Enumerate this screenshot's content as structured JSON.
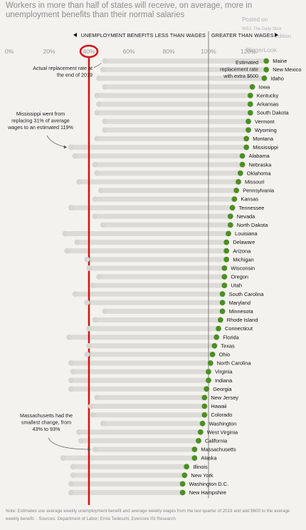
{
  "headline": "Workers in more than half of states will receive, on average, more in unemployment benefits than their normal salaries",
  "overlay": {
    "posted_on": "Posted on",
    "source_line": "WSJ. The Daily Shot",
    "edition": "Edition",
    "brand": "BiggerLook"
  },
  "note": "Note: Estimates use average weekly unemployment benefit and average weekly wages from the last quarter of 2019 and add $600 to the average weekly benefit. · Sources: Department of Labor; Ernie Tedeschi, Evercore ISI Research",
  "chart_data": {
    "type": "dumbbell",
    "x_ticks": [
      "0%",
      "20%",
      "40%",
      "60%",
      "80%",
      "100%",
      "120%"
    ],
    "x_tick_values": [
      0,
      20,
      40,
      60,
      80,
      100,
      120
    ],
    "xlim": [
      0,
      140
    ],
    "reference_line": 100,
    "highlight_tick": 40,
    "highlight_line": 40,
    "header_left": "UNEMPLOYMENT BENEFITS LESS THAN WAGES",
    "header_right": "GREATER THAN WAGES",
    "legend": {
      "start": "Actual replacement rate at the end of 2019",
      "end": "Estimated replacement rate with extra $600"
    },
    "annotations": [
      {
        "state": "Mississippi",
        "text": "Mississippi went from replacing 31% of average wages to an estimated 119%"
      },
      {
        "state": "Massachusetts",
        "text": "Massachusetts had the smallest change, from 43% to 93%"
      }
    ],
    "series": [
      {
        "name": "Actual replacement rate at the end of 2019",
        "field": "start"
      },
      {
        "name": "Estimated replacement rate with extra $600",
        "field": "end"
      }
    ],
    "states": [
      {
        "name": "Maine",
        "start": 48,
        "end": 129
      },
      {
        "name": "New Mexico",
        "start": 47,
        "end": 129
      },
      {
        "name": "Idaho",
        "start": 45,
        "end": 128
      },
      {
        "name": "Iowa",
        "start": 48,
        "end": 122
      },
      {
        "name": "Kentucky",
        "start": 44,
        "end": 121
      },
      {
        "name": "Arkansas",
        "start": 45,
        "end": 121
      },
      {
        "name": "South Dakota",
        "start": 44,
        "end": 121
      },
      {
        "name": "Vermont",
        "start": 48,
        "end": 120
      },
      {
        "name": "Wyoming",
        "start": 48,
        "end": 120
      },
      {
        "name": "Montana",
        "start": 44,
        "end": 119
      },
      {
        "name": "Mississippi",
        "start": 31,
        "end": 119
      },
      {
        "name": "Alabama",
        "start": 33,
        "end": 117
      },
      {
        "name": "Nebraska",
        "start": 43,
        "end": 117
      },
      {
        "name": "Oklahoma",
        "start": 44,
        "end": 116
      },
      {
        "name": "Missouri",
        "start": 35,
        "end": 115
      },
      {
        "name": "Pennsylvania",
        "start": 46,
        "end": 114
      },
      {
        "name": "Kansas",
        "start": 43,
        "end": 113
      },
      {
        "name": "Tennessee",
        "start": 31,
        "end": 112
      },
      {
        "name": "Nevada",
        "start": 43,
        "end": 111
      },
      {
        "name": "North Dakota",
        "start": 47,
        "end": 111
      },
      {
        "name": "Louisiana",
        "start": 28,
        "end": 110
      },
      {
        "name": "Delaware",
        "start": 34,
        "end": 109
      },
      {
        "name": "Arizona",
        "start": 29,
        "end": 109
      },
      {
        "name": "Michigan",
        "start": 39,
        "end": 109
      },
      {
        "name": "Wisconsin",
        "start": 40,
        "end": 108
      },
      {
        "name": "Oregon",
        "start": 45,
        "end": 108
      },
      {
        "name": "Utah",
        "start": 42,
        "end": 108
      },
      {
        "name": "South Carolina",
        "start": 33,
        "end": 107
      },
      {
        "name": "Maryland",
        "start": 39,
        "end": 107
      },
      {
        "name": "Minnesota",
        "start": 48,
        "end": 107
      },
      {
        "name": "Rhode Island",
        "start": 43,
        "end": 106
      },
      {
        "name": "Connecticut",
        "start": 40,
        "end": 105
      },
      {
        "name": "Florida",
        "start": 30,
        "end": 104
      },
      {
        "name": "Texas",
        "start": 40,
        "end": 103
      },
      {
        "name": "Ohio",
        "start": 39,
        "end": 102
      },
      {
        "name": "North Carolina",
        "start": 31,
        "end": 101
      },
      {
        "name": "Virginia",
        "start": 32,
        "end": 100
      },
      {
        "name": "Indiana",
        "start": 31,
        "end": 100
      },
      {
        "name": "Georgia",
        "start": 31,
        "end": 99
      },
      {
        "name": "New Jersey",
        "start": 44,
        "end": 98
      },
      {
        "name": "Hawaii",
        "start": 41,
        "end": 98
      },
      {
        "name": "Colorado",
        "start": 42,
        "end": 98
      },
      {
        "name": "Washington",
        "start": 47,
        "end": 97
      },
      {
        "name": "West Virginia",
        "start": 35,
        "end": 96
      },
      {
        "name": "California",
        "start": 36,
        "end": 95
      },
      {
        "name": "Massachusetts",
        "start": 43,
        "end": 93
      },
      {
        "name": "Alaska",
        "start": 27,
        "end": 93
      },
      {
        "name": "Illinois",
        "start": 32,
        "end": 89
      },
      {
        "name": "New York",
        "start": 32,
        "end": 88
      },
      {
        "name": "Washington D.C.",
        "start": 31,
        "end": 87
      },
      {
        "name": "New Hampshire",
        "start": 31,
        "end": 87
      }
    ],
    "colors": {
      "start_dot": "#d6d6d2",
      "end_dot": "#4b8f22",
      "bar": "#dcdbd7",
      "highlight": "#d1121c",
      "reference": "#666666"
    }
  }
}
